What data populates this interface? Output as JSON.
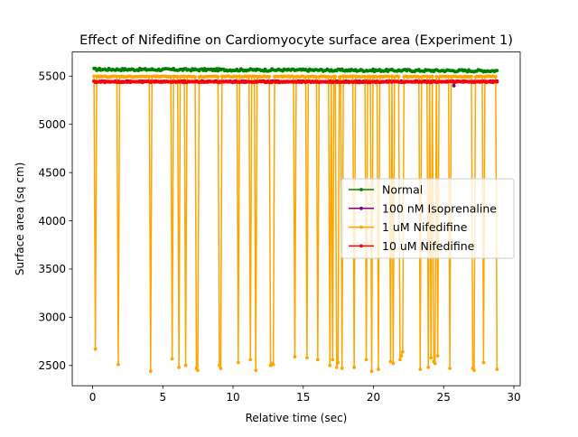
{
  "chart_data": {
    "type": "line",
    "title": "Effect of Nifedifine on Cardiomyocyte surface area (Experiment 1)",
    "xlabel": "Relative time (sec)",
    "ylabel": "Surface area (sq cm)",
    "xlim": [
      -1.45,
      30.45
    ],
    "ylim": [
      2290,
      5750
    ],
    "xticks": [
      0,
      5,
      10,
      15,
      20,
      25,
      30
    ],
    "yticks": [
      2500,
      3000,
      3500,
      4000,
      4500,
      5000,
      5500
    ],
    "grid": false,
    "legend_position": "center-right",
    "series": [
      {
        "name": "Normal",
        "color": "#008000",
        "baseline": 5570,
        "jitter": 12,
        "trend": -15,
        "dips": []
      },
      {
        "name": "100 nM Isoprenaline",
        "color": "#800080",
        "baseline": 5445,
        "jitter": 5,
        "trend": 0,
        "dips": [
          [
            25.7,
            5400
          ]
        ]
      },
      {
        "name": "1 uM Nifedifine",
        "color": "#ffa500",
        "baseline": 5495,
        "jitter": 5,
        "trend": 0,
        "dips": [
          [
            0.2,
            2670
          ],
          [
            1.8,
            2510
          ],
          [
            4.1,
            2440
          ],
          [
            5.7,
            2570
          ],
          [
            6.1,
            2480
          ],
          [
            6.6,
            2500
          ],
          [
            7.4,
            2470
          ],
          [
            7.5,
            2450
          ],
          [
            9.0,
            2500
          ],
          [
            9.1,
            2470
          ],
          [
            10.4,
            2530
          ],
          [
            11.2,
            2560
          ],
          [
            11.6,
            2450
          ],
          [
            12.7,
            2500
          ],
          [
            12.8,
            2520
          ],
          [
            12.9,
            2510
          ],
          [
            14.4,
            2590
          ],
          [
            15.3,
            2580
          ],
          [
            16.0,
            2560
          ],
          [
            16.9,
            2500
          ],
          [
            17.1,
            2560
          ],
          [
            17.4,
            2480
          ],
          [
            17.5,
            2530
          ],
          [
            17.8,
            2470
          ],
          [
            18.6,
            2480
          ],
          [
            19.5,
            2560
          ],
          [
            19.9,
            2440
          ],
          [
            20.4,
            2460
          ],
          [
            21.2,
            2540
          ],
          [
            21.4,
            2520
          ],
          [
            21.9,
            2560
          ],
          [
            22.0,
            2600
          ],
          [
            22.1,
            2640
          ],
          [
            23.3,
            2460
          ],
          [
            23.9,
            2480
          ],
          [
            24.1,
            2580
          ],
          [
            24.3,
            2540
          ],
          [
            24.4,
            2520
          ],
          [
            24.6,
            2600
          ],
          [
            25.4,
            2470
          ],
          [
            27.1,
            2470
          ],
          [
            27.2,
            2450
          ],
          [
            27.8,
            2530
          ],
          [
            28.8,
            2460
          ]
        ]
      },
      {
        "name": "10 uM Nifedifine",
        "color": "#ff0000",
        "baseline": 5440,
        "jitter": 6,
        "trend": 0,
        "dips": []
      }
    ]
  }
}
